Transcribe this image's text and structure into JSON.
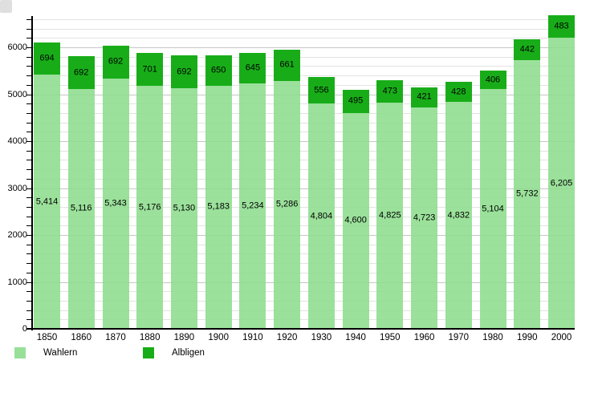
{
  "legend": {
    "wahlern_label": "Wahlern",
    "albligen_label": "Albligen"
  },
  "colors": {
    "wahlern": "#98e098",
    "wahlern_bar": "rgba(141,221,141,0.88)",
    "albligen": "#18ad18",
    "grid_minor": "#e3e3e3",
    "grid_major": "#c7c7c7",
    "axis": "#000000",
    "label_text": "#000000"
  },
  "chart_data": {
    "type": "bar",
    "stacked": true,
    "title": "",
    "xlabel": "",
    "ylabel": "",
    "categories": [
      "1850",
      "1860",
      "1870",
      "1880",
      "1890",
      "1900",
      "1910",
      "1920",
      "1930",
      "1940",
      "1950",
      "1960",
      "1970",
      "1980",
      "1990",
      "2000"
    ],
    "series": [
      {
        "name": "Wahlern",
        "values": [
          5414,
          5116,
          5343,
          5176,
          5130,
          5183,
          5234,
          5286,
          4804,
          4600,
          4825,
          4723,
          4832,
          5104,
          5732,
          6205
        ]
      },
      {
        "name": "Albligen",
        "values": [
          694,
          692,
          692,
          701,
          692,
          650,
          645,
          661,
          556,
          495,
          473,
          421,
          428,
          406,
          442,
          483
        ]
      }
    ],
    "bar_labels": {
      "wahlern": [
        "5,414",
        "5,116",
        "5,343",
        "5,176",
        "5,130",
        "5,183",
        "5,234",
        "5,286",
        "4,804",
        "4,600",
        "4,825",
        "4,723",
        "4,832",
        "5,104",
        "5,732",
        "6,205"
      ],
      "albligen": [
        "694",
        "692",
        "692",
        "701",
        "692",
        "650",
        "645",
        "661",
        "556",
        "495",
        "473",
        "421",
        "428",
        "406",
        "442",
        "483"
      ]
    },
    "ylim": [
      0,
      6800
    ],
    "yticks": [
      "0",
      "1000",
      "2000",
      "3000",
      "4000",
      "5000",
      "6000"
    ],
    "grid": "horizontal minor every 200, major every 1000",
    "legend_position": "bottom-left"
  }
}
